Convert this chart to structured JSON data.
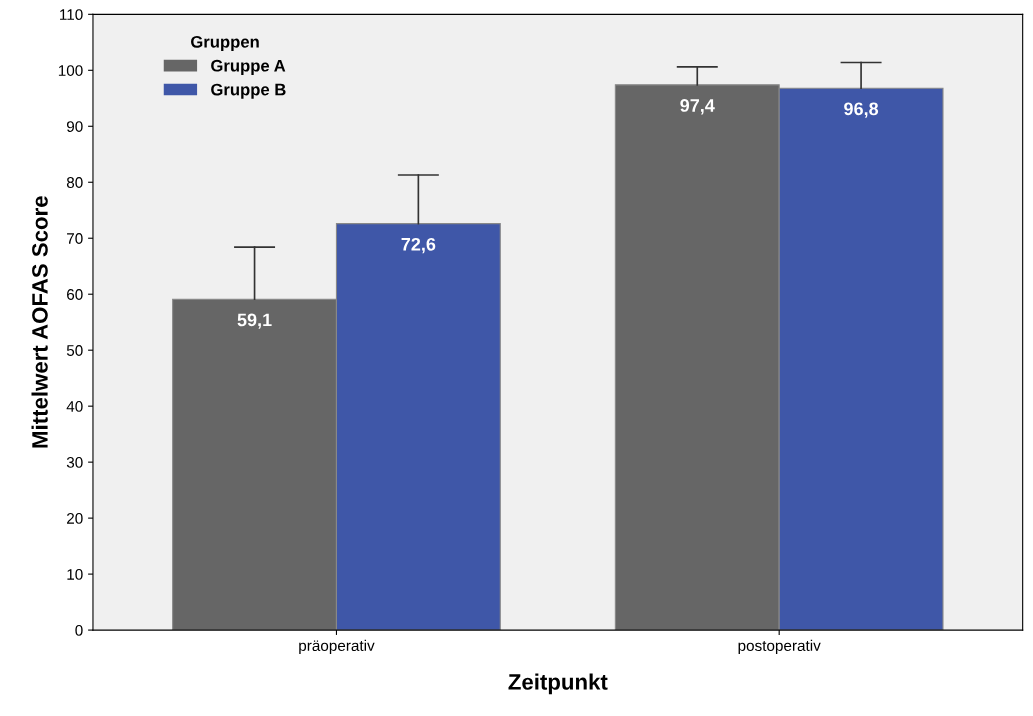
{
  "chart_data": {
    "type": "bar",
    "xlabel": "Zeitpunkt",
    "ylabel": "Mittelwert AOFAS Score",
    "categories": [
      "präoperativ",
      "postoperativ"
    ],
    "series": [
      {
        "name": "Gruppe A",
        "color": "#666666",
        "values": [
          59.1,
          97.4
        ],
        "value_labels": [
          "59,1",
          "97,4"
        ],
        "errors": [
          [
            59.1,
            68.4
          ],
          [
            97.4,
            100.6
          ]
        ]
      },
      {
        "name": "Gruppe B",
        "color": "#3f57a8",
        "values": [
          72.6,
          96.8
        ],
        "value_labels": [
          "72,6",
          "96,8"
        ],
        "errors": [
          [
            72.6,
            81.3
          ],
          [
            96.8,
            101.4
          ]
        ]
      }
    ],
    "ylim": [
      0,
      110
    ],
    "yticks": [
      0,
      10,
      20,
      30,
      40,
      50,
      60,
      70,
      80,
      90,
      100,
      110
    ],
    "legend": "top left",
    "legend_title": "Gruppen",
    "grid": false
  }
}
